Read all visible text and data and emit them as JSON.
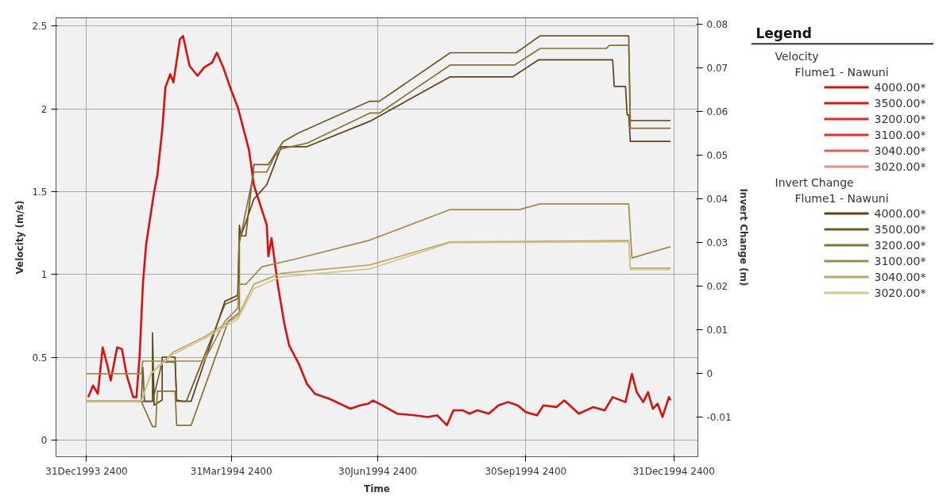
{
  "chart_data": {
    "type": "line",
    "xlabel": "Time",
    "ylabel": "Velocity (m/s)",
    "y2label": "Invert Change (m)",
    "legend_title": "Legend",
    "legend": "right",
    "grid": true,
    "line_style": "solid",
    "annotations": [
      "Velocity",
      "Flume1 - Nawuni",
      "Invert Change",
      "Flume1 - Nawuni"
    ],
    "xlim": [
      "1993-12-13",
      "1995-01-16"
    ],
    "xticks": [
      {
        "value": "1993-12-31T23:59",
        "label": "31Dec1993 2400"
      },
      {
        "value": "1994-03-31T23:59",
        "label": "31Mar1994 2400"
      },
      {
        "value": "1994-06-30T23:59",
        "label": "30Jun1994 2400"
      },
      {
        "value": "1994-09-30T23:59",
        "label": "30Sep1994 2400"
      },
      {
        "value": "1994-12-31T23:59",
        "label": "31Dec1994 2400"
      }
    ],
    "ylim": [
      -0.1,
      2.55
    ],
    "yticks": [
      0,
      0.5,
      1,
      1.5,
      2,
      2.5
    ],
    "y2lim": [
      -0.019,
      0.0815
    ],
    "y2ticks": [
      -0.01,
      0,
      0.01,
      0.02,
      0.03,
      0.04,
      0.05,
      0.06,
      0.07,
      0.08
    ],
    "series": [
      {
        "name": "4000.00*",
        "color": "#d81010",
        "axis": "y",
        "x": [
          "1994-01-02",
          "1994-01-05",
          "1994-01-08",
          "1994-01-11",
          "1994-01-14",
          "1994-01-16",
          "1994-01-20",
          "1994-01-23",
          "1994-01-26",
          "1994-01-30",
          "1994-02-01",
          "1994-02-03",
          "1994-02-05",
          "1994-02-07",
          "1994-02-12",
          "1994-02-14",
          "1994-02-17",
          "1994-02-19",
          "1994-02-22",
          "1994-02-24",
          "1994-02-28",
          "1994-03-02",
          "1994-03-06",
          "1994-03-11",
          "1994-03-15",
          "1994-03-20",
          "1994-03-23",
          "1994-03-27",
          "1994-04-01",
          "1994-04-05",
          "1994-04-08",
          "1994-04-12",
          "1994-04-15",
          "1994-04-19",
          "1994-04-23",
          "1994-04-24",
          "1994-04-26",
          "1994-04-30",
          "1994-05-04",
          "1994-05-07",
          "1994-05-13",
          "1994-05-18",
          "1994-05-23",
          "1994-06-01",
          "1994-06-14",
          "1994-06-20",
          "1994-06-25",
          "1994-06-28",
          "1994-07-04",
          "1994-07-13",
          "1994-07-24",
          "1994-08-01",
          "1994-08-07",
          "1994-08-13",
          "1994-08-17",
          "1994-08-23",
          "1994-08-27",
          "1994-09-01",
          "1994-09-08",
          "1994-09-14",
          "1994-09-20",
          "1994-09-26",
          "1994-10-01",
          "1994-10-08",
          "1994-10-12",
          "1994-10-20",
          "1994-10-25",
          "1994-11-03",
          "1994-11-12",
          "1994-11-19",
          "1994-11-24",
          "1994-12-02",
          "1994-12-06",
          "1994-12-09",
          "1994-12-13",
          "1994-12-16",
          "1994-12-19",
          "1994-12-22",
          "1994-12-25",
          "1994-12-29",
          "1994-12-30"
        ],
        "values": [
          0.26,
          0.33,
          0.28,
          0.56,
          0.45,
          0.36,
          0.56,
          0.55,
          0.39,
          0.26,
          0.26,
          0.51,
          0.94,
          1.18,
          1.5,
          1.6,
          1.87,
          2.13,
          2.21,
          2.16,
          2.42,
          2.44,
          2.26,
          2.2,
          2.25,
          2.28,
          2.34,
          2.25,
          2.11,
          2.01,
          1.9,
          1.75,
          1.54,
          1.42,
          1.3,
          1.11,
          1.22,
          0.93,
          0.7,
          0.57,
          0.46,
          0.34,
          0.28,
          0.25,
          0.19,
          0.21,
          0.22,
          0.24,
          0.21,
          0.16,
          0.15,
          0.14,
          0.15,
          0.09,
          0.18,
          0.18,
          0.16,
          0.18,
          0.16,
          0.21,
          0.23,
          0.21,
          0.17,
          0.15,
          0.21,
          0.2,
          0.24,
          0.16,
          0.2,
          0.18,
          0.26,
          0.23,
          0.4,
          0.29,
          0.23,
          0.29,
          0.19,
          0.22,
          0.14,
          0.26,
          0.24
        ]
      },
      {
        "name": "3500.00*",
        "color": "#e01414",
        "axis": "y"
      },
      {
        "name": "3200.00*",
        "color": "#e82222",
        "axis": "y"
      },
      {
        "name": "3100.00*",
        "color": "#ee2a2a",
        "axis": "y"
      },
      {
        "name": "3040.00*",
        "color": "#f05858",
        "axis": "y"
      },
      {
        "name": "3020.00*",
        "color": "#f08a8a",
        "axis": "y"
      },
      {
        "name": "4000.00*",
        "color": "#5c4420",
        "axis": "y2",
        "x": [
          "1994-01-01",
          "1994-02-04",
          "1994-02-11",
          "1994-02-11",
          "1994-02-12",
          "1994-02-17",
          "1994-02-17",
          "1994-02-25",
          "1994-02-26",
          "1994-03-02",
          "1994-03-07",
          "1994-03-28",
          "1994-04-05",
          "1994-04-06",
          "1994-04-07",
          "1994-04-15",
          "1994-04-23",
          "1994-05-02",
          "1994-05-18",
          "1994-06-26",
          "1994-08-15",
          "1994-09-23",
          "1994-10-09",
          "1994-11-24",
          "1994-11-25",
          "1994-12-02",
          "1994-12-03",
          "1994-12-04",
          "1994-12-05",
          "1994-12-30"
        ],
        "values": [
          -0.0063,
          -0.0063,
          -0.0063,
          0.0094,
          -0.0072,
          -0.006,
          0.0038,
          0.0038,
          -0.006,
          -0.0063,
          -0.0063,
          0.0166,
          0.018,
          0.034,
          0.0316,
          0.04,
          0.0433,
          0.052,
          0.052,
          0.0578,
          0.068,
          0.068,
          0.0719,
          0.0719,
          0.0658,
          0.0658,
          0.0593,
          0.0593,
          0.0532,
          0.0532
        ]
      },
      {
        "name": "3500.00*",
        "color": "#6e5a26",
        "axis": "y2",
        "x": [
          "1994-01-01",
          "1994-02-04",
          "1994-02-05",
          "1994-02-06",
          "1994-02-11",
          "1994-02-17",
          "1994-02-25",
          "1994-02-26",
          "1994-03-04",
          "1994-03-28",
          "1994-04-05",
          "1994-04-06",
          "1994-04-10",
          "1994-04-15",
          "1994-04-24",
          "1994-05-03",
          "1994-05-12",
          "1994-06-26",
          "1994-07-02",
          "1994-08-15",
          "1994-09-25",
          "1994-10-10",
          "1994-12-04",
          "1994-12-05",
          "1994-12-30"
        ],
        "values": [
          -0.0063,
          -0.0063,
          0.0015,
          -0.0063,
          -0.0063,
          0.0027,
          0.0027,
          -0.0063,
          -0.0063,
          0.0159,
          0.0172,
          0.0316,
          0.0316,
          0.0479,
          0.0479,
          0.0531,
          0.055,
          0.0624,
          0.0624,
          0.0735,
          0.0735,
          0.0774,
          0.0774,
          0.058,
          0.058
        ]
      },
      {
        "name": "3200.00*",
        "color": "#8a7232",
        "axis": "y2",
        "x": [
          "1994-01-01",
          "1994-02-04",
          "1994-02-11",
          "1994-02-13",
          "1994-02-14",
          "1994-02-25",
          "1994-02-26",
          "1994-03-07",
          "1994-03-30",
          "1994-04-06",
          "1994-04-06",
          "1994-04-15",
          "1994-04-23",
          "1994-04-28",
          "1994-05-02",
          "1994-05-18",
          "1994-06-26",
          "1994-07-02",
          "1994-08-15",
          "1994-09-24",
          "1994-10-10",
          "1994-11-20",
          "1994-11-22",
          "1994-12-04",
          "1994-12-05",
          "1994-12-30"
        ],
        "values": [
          -0.0063,
          -0.0063,
          -0.0121,
          -0.0121,
          -0.004,
          -0.004,
          -0.0118,
          -0.0118,
          0.012,
          0.014,
          0.03,
          0.0462,
          0.0462,
          0.0498,
          0.0515,
          0.0528,
          0.0597,
          0.0597,
          0.0707,
          0.0707,
          0.0745,
          0.0745,
          0.0752,
          0.0752,
          0.0562,
          0.0562
        ]
      },
      {
        "name": "3100.00*",
        "color": "#a08a48",
        "axis": "y2",
        "x": [
          "1994-01-01",
          "1994-02-04",
          "1994-02-05",
          "1994-03-15",
          "1994-03-28",
          "1994-04-05",
          "1994-04-06",
          "1994-04-10",
          "1994-04-20",
          "1994-05-10",
          "1994-06-26",
          "1994-08-15",
          "1994-09-27",
          "1994-10-10",
          "1994-12-04",
          "1994-12-05",
          "1994-12-06",
          "1994-12-15",
          "1994-12-30"
        ],
        "values": [
          0,
          0,
          0.0029,
          0.0029,
          0.012,
          0.015,
          0.0205,
          0.0205,
          0.0245,
          0.0262,
          0.0306,
          0.0376,
          0.0376,
          0.0389,
          0.0389,
          0.0327,
          0.0265,
          0.0275,
          0.0291
        ]
      },
      {
        "name": "3040.00*",
        "color": "#bca766",
        "axis": "y2",
        "x": [
          "1994-01-01",
          "1994-02-04",
          "1994-02-10",
          "1994-02-24",
          "1994-03-15",
          "1994-03-22",
          "1994-04-05",
          "1994-04-15",
          "1994-05-02",
          "1994-06-26",
          "1994-08-15",
          "1994-12-04",
          "1994-12-05",
          "1994-12-30"
        ],
        "values": [
          -0.0063,
          -0.0063,
          0,
          0.005,
          0.0084,
          0.01,
          0.0131,
          0.0205,
          0.023,
          0.0249,
          0.0302,
          0.0305,
          0.0242,
          0.0242
        ]
      },
      {
        "name": "3020.00*",
        "color": "#d6c48e",
        "axis": "y2",
        "x": [
          "1994-01-01",
          "1994-02-04",
          "1994-02-10",
          "1994-02-24",
          "1994-03-15",
          "1994-03-22",
          "1994-04-05",
          "1994-04-15",
          "1994-05-02",
          "1994-06-26",
          "1994-08-15",
          "1994-12-04",
          "1994-12-05",
          "1994-12-30"
        ],
        "values": [
          -0.0063,
          -0.0063,
          0,
          0.0045,
          0.008,
          0.0095,
          0.0125,
          0.0195,
          0.0222,
          0.024,
          0.03,
          0.0302,
          0.0238,
          0.0238
        ]
      }
    ]
  }
}
